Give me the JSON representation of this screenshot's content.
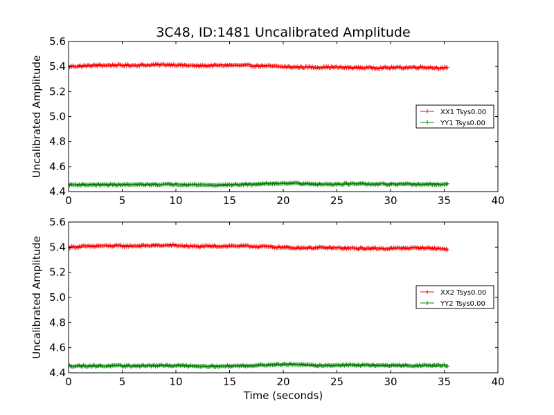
{
  "figure": {
    "title": "3C48, ID:1481 Uncalibrated Amplitude",
    "xlabel": "Time (seconds)"
  },
  "chart_data": [
    {
      "type": "line",
      "title": "3C48, ID:1481 Uncalibrated Amplitude",
      "xlabel": "",
      "ylabel": "Uncalibrated Amplitude",
      "xlim": [
        0,
        40
      ],
      "ylim": [
        4.4,
        5.6
      ],
      "xticks": [
        "0",
        "5",
        "10",
        "15",
        "20",
        "25",
        "30",
        "35",
        "40"
      ],
      "yticks": [
        "4.4",
        "4.6",
        "4.8",
        "5.0",
        "5.2",
        "5.4",
        "5.6"
      ],
      "grid": false,
      "legend_position": "right",
      "marker": "+",
      "x": {
        "start": 0,
        "end": 35.3,
        "count": 354
      },
      "series": [
        {
          "name": "XX1 Tsys0.00",
          "color": "#ff0000",
          "mean": 5.4,
          "noise": 0.008,
          "trend": [
            [
              0,
              5.4
            ],
            [
              3,
              5.41
            ],
            [
              6,
              5.41
            ],
            [
              9.5,
              5.415
            ],
            [
              12,
              5.405
            ],
            [
              15,
              5.41
            ],
            [
              18,
              5.405
            ],
            [
              21,
              5.395
            ],
            [
              24,
              5.395
            ],
            [
              27,
              5.39
            ],
            [
              30,
              5.39
            ],
            [
              33,
              5.395
            ],
            [
              35.3,
              5.385
            ]
          ]
        },
        {
          "name": "YY1 Tsys0.00",
          "color": "#008000",
          "mean": 4.455,
          "noise": 0.006,
          "trend": [
            [
              0,
              4.455
            ],
            [
              5,
              4.455
            ],
            [
              10,
              4.458
            ],
            [
              14,
              4.452
            ],
            [
              17,
              4.458
            ],
            [
              19,
              4.465
            ],
            [
              21,
              4.468
            ],
            [
              23,
              4.458
            ],
            [
              26,
              4.462
            ],
            [
              28,
              4.46
            ],
            [
              31,
              4.458
            ],
            [
              35.3,
              4.458
            ]
          ]
        }
      ]
    },
    {
      "type": "line",
      "title": "",
      "xlabel": "Time (seconds)",
      "ylabel": "Uncalibrated Amplitude",
      "xlim": [
        0,
        40
      ],
      "ylim": [
        4.4,
        5.6
      ],
      "xticks": [
        "0",
        "5",
        "10",
        "15",
        "20",
        "25",
        "30",
        "35",
        "40"
      ],
      "yticks": [
        "4.4",
        "4.6",
        "4.8",
        "5.0",
        "5.2",
        "5.4",
        "5.6"
      ],
      "grid": false,
      "legend_position": "right",
      "marker": "+",
      "x": {
        "start": 0,
        "end": 35.3,
        "count": 354
      },
      "series": [
        {
          "name": "XX2 Tsys0.00",
          "color": "#ff0000",
          "mean": 5.4,
          "noise": 0.008,
          "trend": [
            [
              0,
              5.4
            ],
            [
              3,
              5.41
            ],
            [
              6,
              5.41
            ],
            [
              9.5,
              5.415
            ],
            [
              12,
              5.405
            ],
            [
              15,
              5.41
            ],
            [
              18,
              5.405
            ],
            [
              21,
              5.395
            ],
            [
              24,
              5.395
            ],
            [
              27,
              5.39
            ],
            [
              30,
              5.39
            ],
            [
              33,
              5.395
            ],
            [
              35.3,
              5.385
            ]
          ]
        },
        {
          "name": "YY2 Tsys0.00",
          "color": "#008000",
          "mean": 4.455,
          "noise": 0.006,
          "trend": [
            [
              0,
              4.455
            ],
            [
              5,
              4.455
            ],
            [
              10,
              4.458
            ],
            [
              14,
              4.452
            ],
            [
              17,
              4.458
            ],
            [
              19,
              4.465
            ],
            [
              21,
              4.468
            ],
            [
              23,
              4.458
            ],
            [
              26,
              4.462
            ],
            [
              28,
              4.46
            ],
            [
              31,
              4.458
            ],
            [
              35.3,
              4.458
            ]
          ]
        }
      ]
    }
  ]
}
